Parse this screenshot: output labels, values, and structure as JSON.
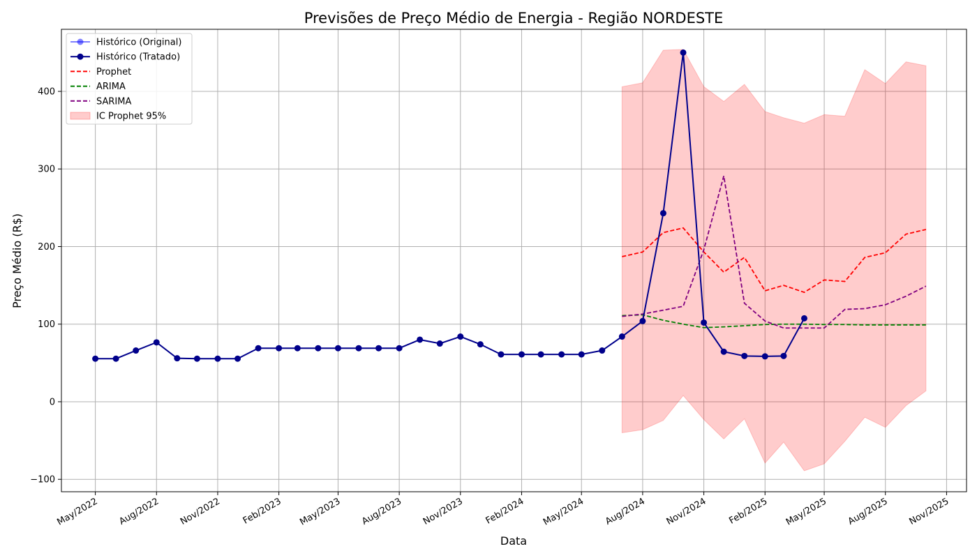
{
  "chart_data": {
    "type": "line",
    "title": "Previsões de Preço Médio de Energia - Região NORDESTE",
    "xlabel": "Data",
    "ylabel": "Preço Médio (R$)",
    "xlim": [
      "2022-03-11",
      "2025-12-01"
    ],
    "ylim": [
      -116,
      480
    ],
    "grid": true,
    "legend_position": "top-left",
    "x_ticks": [
      {
        "date": "2022-05-01",
        "label": "May/2022"
      },
      {
        "date": "2022-08-01",
        "label": "Aug/2022"
      },
      {
        "date": "2022-11-01",
        "label": "Nov/2022"
      },
      {
        "date": "2023-02-01",
        "label": "Feb/2023"
      },
      {
        "date": "2023-05-01",
        "label": "May/2023"
      },
      {
        "date": "2023-08-01",
        "label": "Aug/2023"
      },
      {
        "date": "2023-11-01",
        "label": "Nov/2023"
      },
      {
        "date": "2024-02-01",
        "label": "Feb/2024"
      },
      {
        "date": "2024-05-01",
        "label": "May/2024"
      },
      {
        "date": "2024-08-01",
        "label": "Aug/2024"
      },
      {
        "date": "2024-11-01",
        "label": "Nov/2024"
      },
      {
        "date": "2025-02-01",
        "label": "Feb/2025"
      },
      {
        "date": "2025-05-01",
        "label": "May/2025"
      },
      {
        "date": "2025-08-01",
        "label": "Aug/2025"
      },
      {
        "date": "2025-11-01",
        "label": "Nov/2025"
      }
    ],
    "y_ticks": [
      {
        "value": -100,
        "label": "−100"
      },
      {
        "value": 0,
        "label": "0"
      },
      {
        "value": 100,
        "label": "100"
      },
      {
        "value": 200,
        "label": "200"
      },
      {
        "value": 300,
        "label": "300"
      },
      {
        "value": 400,
        "label": "400"
      }
    ],
    "series": [
      {
        "name": "Histórico (Original)",
        "color": "#0000ff",
        "style": "solid-marker-faded",
        "x": [
          "2022-05-01",
          "2022-06-01",
          "2022-07-01",
          "2022-08-01",
          "2022-09-01",
          "2022-10-01",
          "2022-11-01",
          "2022-12-01",
          "2023-01-01",
          "2023-02-01",
          "2023-03-01",
          "2023-04-01",
          "2023-05-01",
          "2023-06-01",
          "2023-07-01",
          "2023-08-01",
          "2023-09-01",
          "2023-10-01",
          "2023-11-01",
          "2023-12-01",
          "2024-01-01",
          "2024-02-01",
          "2024-03-01",
          "2024-04-01",
          "2024-05-01",
          "2024-06-01",
          "2024-07-01",
          "2024-08-01",
          "2024-09-01",
          "2024-10-01",
          "2024-11-01",
          "2024-12-01",
          "2025-01-01",
          "2025-02-01",
          "2025-03-01",
          "2025-04-01"
        ],
        "y": [
          55.5,
          55.5,
          66,
          76.5,
          56,
          55.5,
          55.5,
          55.5,
          69,
          69,
          69,
          69,
          69,
          69,
          69,
          69,
          80,
          75,
          84,
          74,
          61,
          61,
          61,
          61,
          61,
          66,
          84,
          104,
          243,
          450,
          102,
          64.5,
          59,
          58.5,
          59,
          107.5
        ]
      },
      {
        "name": "Histórico (Tratado)",
        "color": "#00008b",
        "style": "solid-marker",
        "x": [
          "2022-05-01",
          "2022-06-01",
          "2022-07-01",
          "2022-08-01",
          "2022-09-01",
          "2022-10-01",
          "2022-11-01",
          "2022-12-01",
          "2023-01-01",
          "2023-02-01",
          "2023-03-01",
          "2023-04-01",
          "2023-05-01",
          "2023-06-01",
          "2023-07-01",
          "2023-08-01",
          "2023-09-01",
          "2023-10-01",
          "2023-11-01",
          "2023-12-01",
          "2024-01-01",
          "2024-02-01",
          "2024-03-01",
          "2024-04-01",
          "2024-05-01",
          "2024-06-01",
          "2024-07-01",
          "2024-08-01",
          "2024-09-01",
          "2024-10-01",
          "2024-11-01",
          "2024-12-01",
          "2025-01-01",
          "2025-02-01",
          "2025-03-01",
          "2025-04-01"
        ],
        "y": [
          55.5,
          55.5,
          66,
          76.5,
          56,
          55.5,
          55.5,
          55.5,
          69,
          69,
          69,
          69,
          69,
          69,
          69,
          69,
          80,
          75,
          84,
          74,
          61,
          61,
          61,
          61,
          61,
          66,
          84,
          104,
          243,
          450,
          102,
          64.5,
          59,
          58.5,
          59,
          107.5
        ]
      },
      {
        "name": "Prophet",
        "color": "#ff0000",
        "style": "dashed",
        "x": [
          "2024-07-01",
          "2024-08-01",
          "2024-09-01",
          "2024-10-01",
          "2024-11-01",
          "2024-12-01",
          "2025-01-01",
          "2025-02-01",
          "2025-03-01",
          "2025-04-01",
          "2025-05-01",
          "2025-06-01",
          "2025-07-01",
          "2025-08-01",
          "2025-09-01",
          "2025-10-01"
        ],
        "y": [
          187,
          193,
          218,
          224,
          193,
          167,
          186,
          143,
          150,
          141,
          157,
          155,
          186,
          192,
          216,
          222
        ]
      },
      {
        "name": "ARIMA",
        "color": "#008000",
        "style": "dashed",
        "x": [
          "2024-07-01",
          "2024-08-01",
          "2024-09-01",
          "2024-10-01",
          "2024-11-01",
          "2024-12-01",
          "2025-01-01",
          "2025-02-01",
          "2025-03-01",
          "2025-04-01",
          "2025-05-01",
          "2025-06-01",
          "2025-07-01",
          "2025-08-01",
          "2025-09-01",
          "2025-10-01"
        ],
        "y": [
          111,
          112,
          105,
          100,
          95.5,
          96.5,
          98,
          99.5,
          100,
          100,
          99.5,
          99.5,
          99,
          99,
          99,
          99
        ]
      },
      {
        "name": "SARIMA",
        "color": "#800080",
        "style": "dashed",
        "x": [
          "2024-07-01",
          "2024-08-01",
          "2024-09-01",
          "2024-10-01",
          "2024-11-01",
          "2024-12-01",
          "2025-01-01",
          "2025-02-01",
          "2025-03-01",
          "2025-04-01",
          "2025-05-01",
          "2025-06-01",
          "2025-07-01",
          "2025-08-01",
          "2025-09-01",
          "2025-10-01"
        ],
        "y": [
          110,
          113,
          118,
          123,
          196,
          291,
          127,
          104,
          95,
          95,
          95,
          119,
          120,
          125,
          136,
          149
        ]
      }
    ],
    "band": {
      "name": "IC Prophet 95%",
      "color": "#ff0000",
      "opacity": 0.2,
      "x": [
        "2024-07-01",
        "2024-08-01",
        "2024-09-01",
        "2024-10-01",
        "2024-11-01",
        "2024-12-01",
        "2025-01-01",
        "2025-02-01",
        "2025-03-01",
        "2025-04-01",
        "2025-05-01",
        "2025-06-01",
        "2025-07-01",
        "2025-08-01",
        "2025-09-01",
        "2025-10-01"
      ],
      "upper": [
        406,
        411,
        453,
        454,
        406,
        387,
        409,
        374,
        366,
        359,
        370,
        368,
        428,
        410,
        438,
        433
      ],
      "lower": [
        -40,
        -36,
        -24,
        8,
        -23,
        -48,
        -22,
        -79,
        -52,
        -89,
        -80,
        -51,
        -20,
        -33,
        -5,
        14
      ]
    }
  }
}
